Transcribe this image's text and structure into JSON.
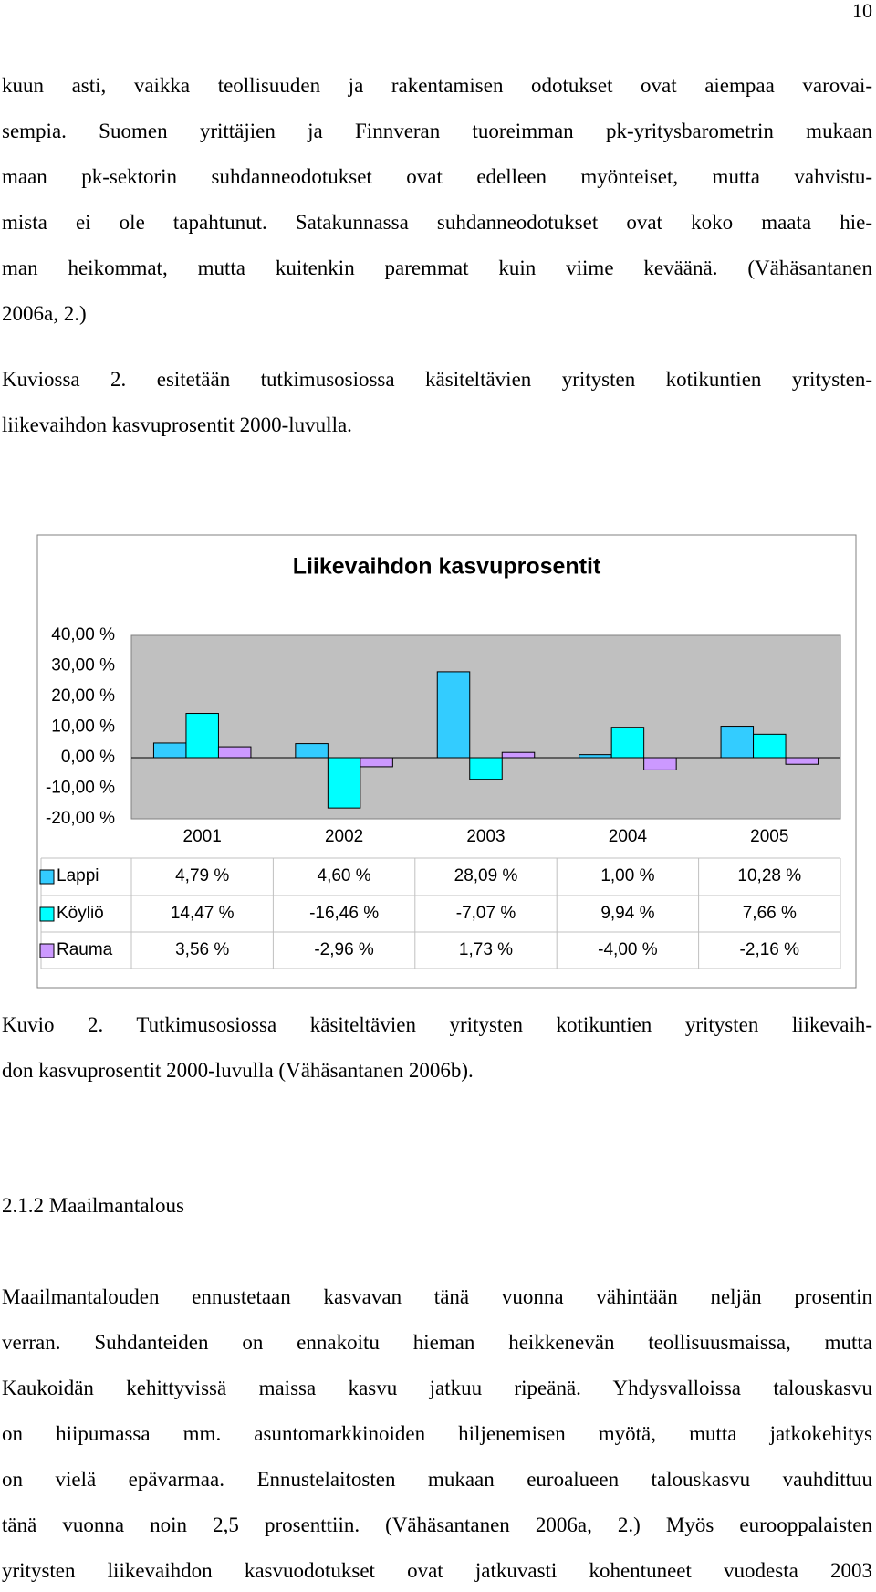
{
  "page_number": "10",
  "paragraph_1": [
    "kuun asti, vaikka teollisuuden ja rakentamisen odotukset ovat aiempaa varovai-",
    "sempia. Suomen yrittäjien ja Finnveran tuoreimman pk-yritysbarometrin mukaan",
    "maan pk-sektorin suhdanneodotukset ovat edelleen myönteiset, mutta vahvistu-",
    "mista ei ole tapahtunut. Satakunnassa suhdanneodotukset ovat koko maata hie-",
    "man heikommat, mutta kuitenkin paremmat kuin viime keväänä. (Vähäsantanen",
    "2006a, 2.)"
  ],
  "paragraph_2": [
    "Kuviossa 2. esitetään tutkimusosiossa käsiteltävien yritysten kotikuntien yritysten-",
    "liikevaihdon kasvuprosentit 2000-luvulla."
  ],
  "chart_data": {
    "type": "bar",
    "title": "Liikevaihdon kasvuprosentit",
    "categories": [
      "2001",
      "2002",
      "2003",
      "2004",
      "2005"
    ],
    "series": [
      {
        "name": "Lappi",
        "color": "#33ccff",
        "values": [
          4.79,
          4.6,
          28.09,
          1.0,
          10.28
        ],
        "value_labels": [
          "4,79 %",
          "4,60 %",
          "28,09 %",
          "1,00 %",
          "10,28 %"
        ]
      },
      {
        "name": "Köyliö",
        "color": "#00ffff",
        "values": [
          14.47,
          -16.46,
          -7.07,
          9.94,
          7.66
        ],
        "value_labels": [
          "14,47 %",
          "-16,46 %",
          "-7,07 %",
          "9,94 %",
          "7,66 %"
        ]
      },
      {
        "name": "Rauma",
        "color": "#cc99ff",
        "values": [
          3.56,
          -2.96,
          1.73,
          -4.0,
          -2.16
        ],
        "value_labels": [
          "3,56 %",
          "-2,96 %",
          "1,73 %",
          "-4,00 %",
          "-2,16 %"
        ]
      }
    ],
    "ylim": [
      -20,
      40
    ],
    "yticks": [
      {
        "value": 40,
        "label": "40,00 %"
      },
      {
        "value": 30,
        "label": "30,00 %"
      },
      {
        "value": 20,
        "label": "20,00 %"
      },
      {
        "value": 10,
        "label": "10,00 %"
      },
      {
        "value": 0,
        "label": "0,00 %"
      },
      {
        "value": -10,
        "label": "-10,00 %"
      },
      {
        "value": -20,
        "label": "-20,00 %"
      }
    ],
    "grid": false,
    "plot_background": "#c0c0c0"
  },
  "caption": [
    "Kuvio 2. Tutkimusosiossa käsiteltävien yritysten kotikuntien yritysten liikevaih-",
    "don kasvuprosentit 2000-luvulla (Vähäsantanen 2006b)."
  ],
  "heading": "2.1.2 Maailmantalous",
  "paragraph_3": [
    "Maailmantalouden ennustetaan kasvavan tänä vuonna vähintään neljän prosentin",
    "verran. Suhdanteiden on ennakoitu hieman heikkenevän teollisuusmaissa, mutta",
    "Kaukoidän kehittyvissä maissa kasvu jatkuu ripeänä. Yhdysvalloissa talouskasvu",
    "on hiipumassa mm. asuntomarkkinoiden hiljenemisen myötä, mutta jatkokehitys",
    "on vielä epävarmaa. Ennustelaitosten mukaan euroalueen talouskasvu vauhdittuu",
    "tänä vuonna noin 2,5 prosenttiin. (Vähäsantanen 2006a, 2.) Myös eurooppalaisten",
    "yritysten liikevaihdon kasvuodotukset ovat jatkuvasti kohentuneet vuodesta 2003"
  ]
}
